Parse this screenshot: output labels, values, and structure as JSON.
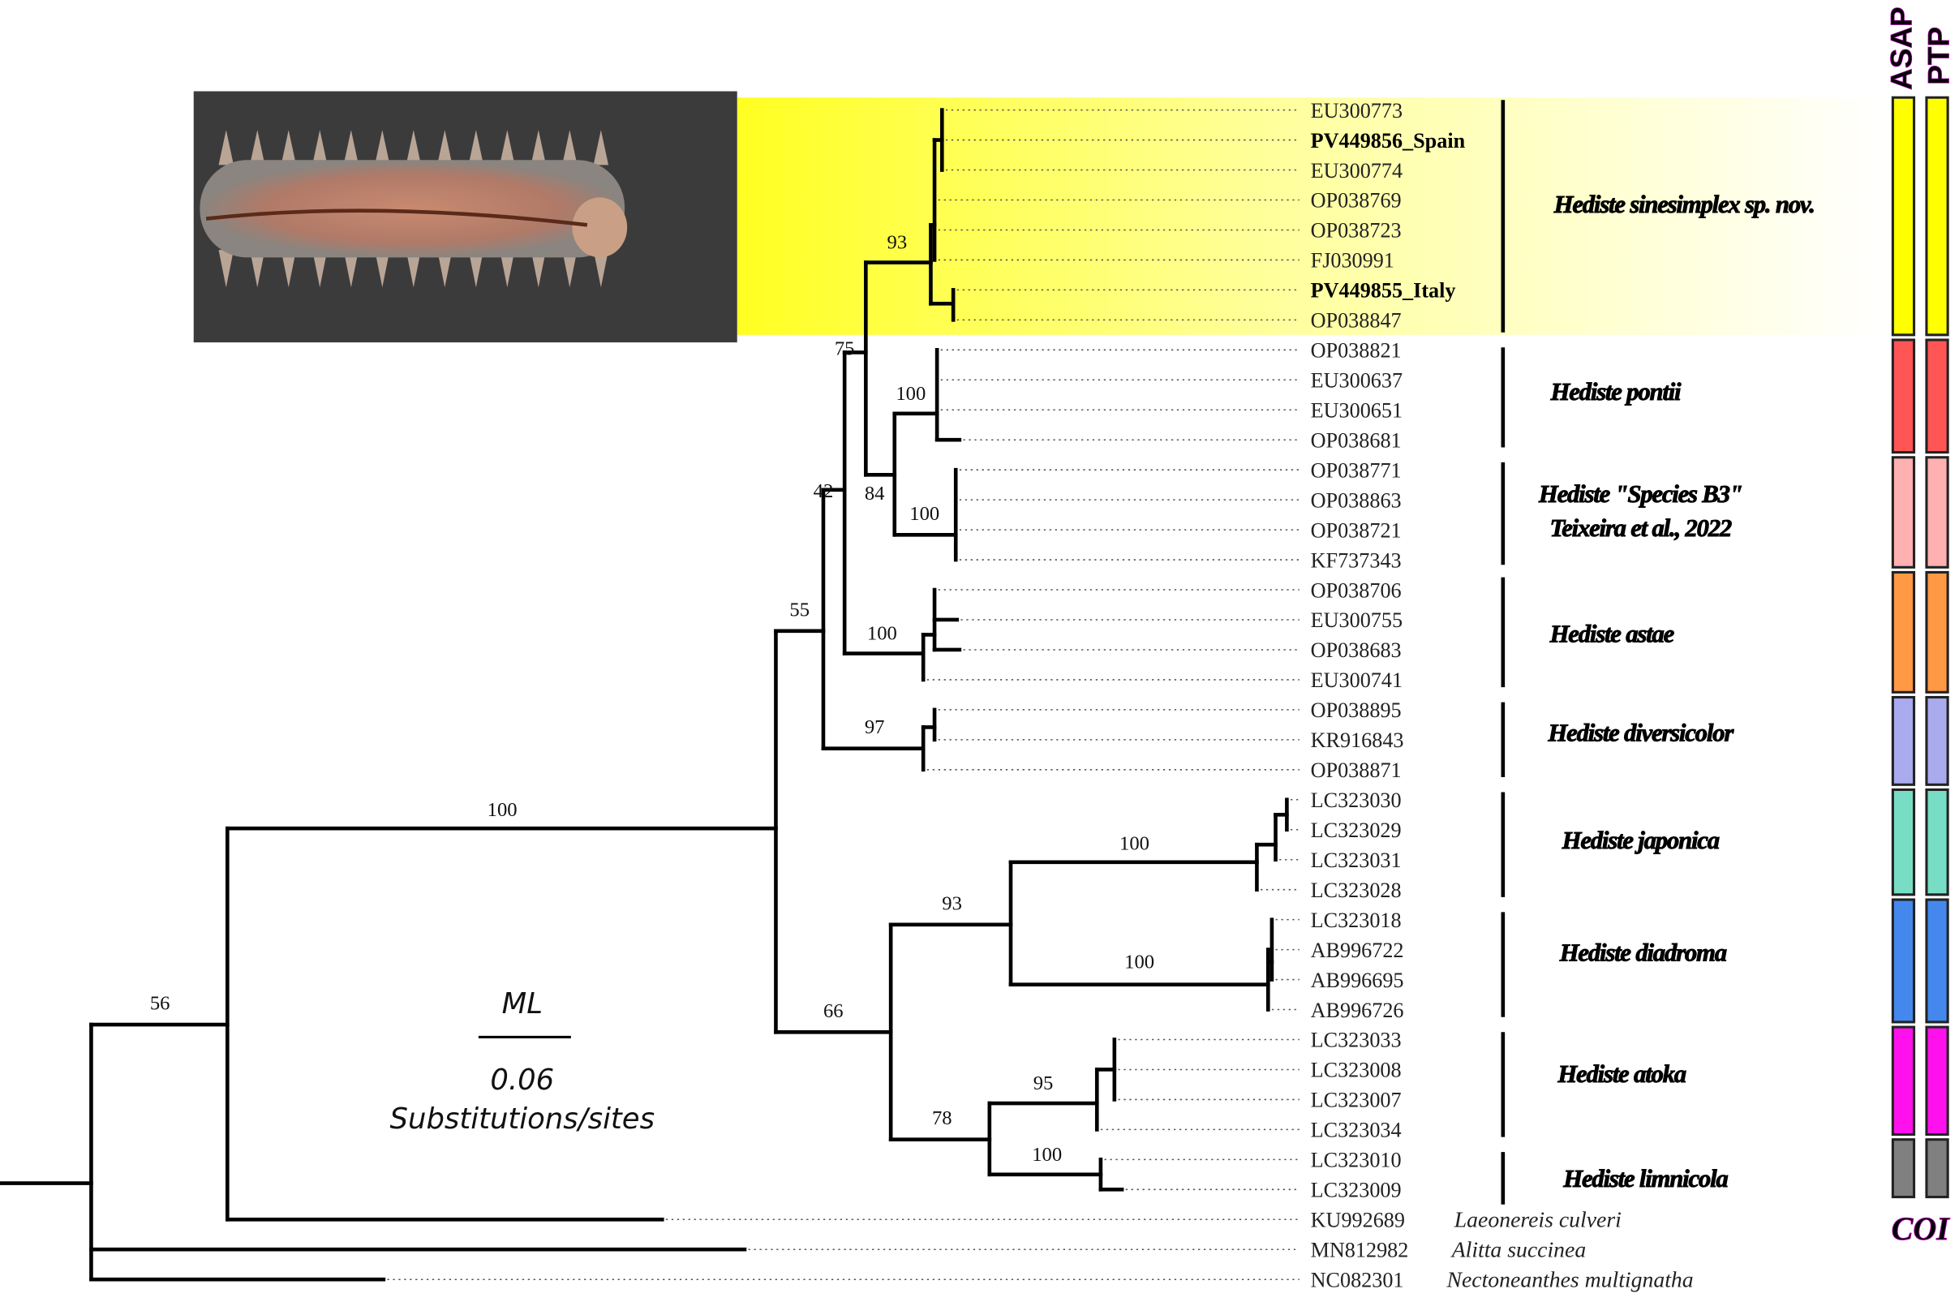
{
  "leaves": [
    {
      "id": "EU300773",
      "bold": false
    },
    {
      "id": "PV449856_Spain",
      "bold": true
    },
    {
      "id": "EU300774",
      "bold": false
    },
    {
      "id": "OP038769",
      "bold": false
    },
    {
      "id": "OP038723",
      "bold": false
    },
    {
      "id": "FJ030991",
      "bold": false
    },
    {
      "id": "PV449855_Italy",
      "bold": true
    },
    {
      "id": "OP038847",
      "bold": false
    },
    {
      "id": "OP038821",
      "bold": false
    },
    {
      "id": "EU300637",
      "bold": false
    },
    {
      "id": "EU300651",
      "bold": false
    },
    {
      "id": "OP038681",
      "bold": false
    },
    {
      "id": "OP038771",
      "bold": false
    },
    {
      "id": "OP038863",
      "bold": false
    },
    {
      "id": "OP038721",
      "bold": false
    },
    {
      "id": "KF737343",
      "bold": false
    },
    {
      "id": "OP038706",
      "bold": false
    },
    {
      "id": "EU300755",
      "bold": false
    },
    {
      "id": "OP038683",
      "bold": false
    },
    {
      "id": "EU300741",
      "bold": false
    },
    {
      "id": "OP038895",
      "bold": false
    },
    {
      "id": "KR916843",
      "bold": false
    },
    {
      "id": "OP038871",
      "bold": false
    },
    {
      "id": "LC323030",
      "bold": false
    },
    {
      "id": "LC323029",
      "bold": false
    },
    {
      "id": "LC323031",
      "bold": false
    },
    {
      "id": "LC323028",
      "bold": false
    },
    {
      "id": "LC323018",
      "bold": false
    },
    {
      "id": "AB996722",
      "bold": false
    },
    {
      "id": "AB996695",
      "bold": false
    },
    {
      "id": "AB996726",
      "bold": false
    },
    {
      "id": "LC323033",
      "bold": false
    },
    {
      "id": "LC323008",
      "bold": false
    },
    {
      "id": "LC323007",
      "bold": false
    },
    {
      "id": "LC323034",
      "bold": false
    },
    {
      "id": "LC323010",
      "bold": false
    },
    {
      "id": "LC323009",
      "bold": false
    },
    {
      "id": "KU992689",
      "bold": false
    },
    {
      "id": "MN812982",
      "bold": false
    },
    {
      "id": "NC082301",
      "bold": false
    }
  ],
  "outgroups": [
    "Laeonereis culveri",
    "Alitta succinea",
    "Nectoneanthes multignatha"
  ],
  "clades": [
    {
      "lines": [
        "Hediste sinesimplex sp. nov."
      ],
      "color": "#ffff00"
    },
    {
      "lines": [
        "Hediste pontii"
      ],
      "color": "#ff5555"
    },
    {
      "lines": [
        "Hediste \"Species B3\"",
        "Teixeira et al., 2022"
      ],
      "color": "#ffb0b0"
    },
    {
      "lines": [
        "Hediste astae"
      ],
      "color": "#ff9944"
    },
    {
      "lines": [
        "Hediste diversicolor"
      ],
      "color": "#aaaaee"
    },
    {
      "lines": [
        "Hediste japonica"
      ],
      "color": "#77ddc4"
    },
    {
      "lines": [
        "Hediste diadroma"
      ],
      "color": "#4488ee"
    },
    {
      "lines": [
        "Hediste atoka"
      ],
      "color": "#ff11ee"
    },
    {
      "lines": [
        "Hediste limnicola"
      ],
      "color": "#808080"
    }
  ],
  "supports": [
    "56",
    "100",
    "55",
    "66",
    "42",
    "97",
    "75",
    "100",
    "93",
    "84",
    "100",
    "100",
    "93",
    "78",
    "100",
    "100",
    "95",
    "100"
  ],
  "scale": {
    "method": "ML",
    "value": "0.06",
    "unit": "Substitutions/sites"
  },
  "delimitation_headers": [
    "ASAP",
    "PTP"
  ],
  "marker": "COI",
  "highlight_color": "#ffff22"
}
